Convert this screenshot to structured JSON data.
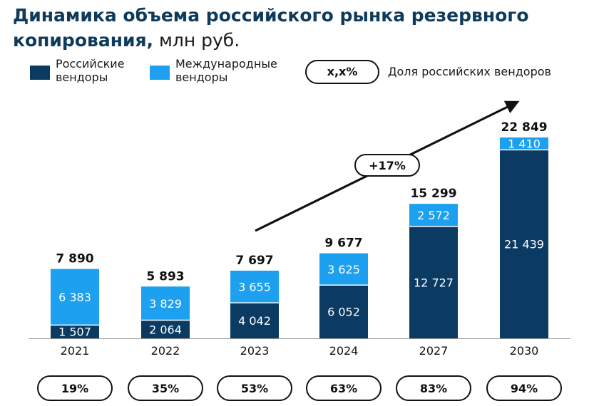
{
  "title": {
    "bold": "Динамика объема российского рынка резервного копирования,",
    "unit": " млн руб."
  },
  "legend": {
    "russian_label": "Российские\nвендоры",
    "international_label": "Международные\nвендоры",
    "share_sample": "x,x%",
    "share_label": "Доля российских вендоров"
  },
  "colors": {
    "russian": "#0b3a63",
    "international": "#1ea0f0",
    "text": "#111111",
    "title": "#0e3a5c"
  },
  "cagr_label": "+17%",
  "chart_data": {
    "type": "bar",
    "stacked": true,
    "categories": [
      "2021",
      "2022",
      "2023",
      "2024",
      "2027",
      "2030"
    ],
    "series": [
      {
        "name": "Российские вендоры",
        "values": [
          1507,
          2064,
          4042,
          6052,
          12727,
          21439
        ]
      },
      {
        "name": "Международные вендоры",
        "values": [
          6383,
          3829,
          3655,
          3625,
          2572,
          1410
        ]
      }
    ],
    "value_labels": {
      "russian": [
        "1 507",
        "2 064",
        "4 042",
        "6 052",
        "12 727",
        "21 439"
      ],
      "international": [
        "6 383",
        "3 829",
        "3 655",
        "3 625",
        "2 572",
        "1 410"
      ]
    },
    "totals": [
      7890,
      5893,
      7697,
      9677,
      15299,
      22849
    ],
    "total_labels": [
      "7 890",
      "5 893",
      "7 697",
      "9 677",
      "15 299",
      "22 849"
    ],
    "shares": [
      "19%",
      "35%",
      "53%",
      "63%",
      "83%",
      "94%"
    ],
    "ylim": [
      0,
      23000
    ]
  }
}
